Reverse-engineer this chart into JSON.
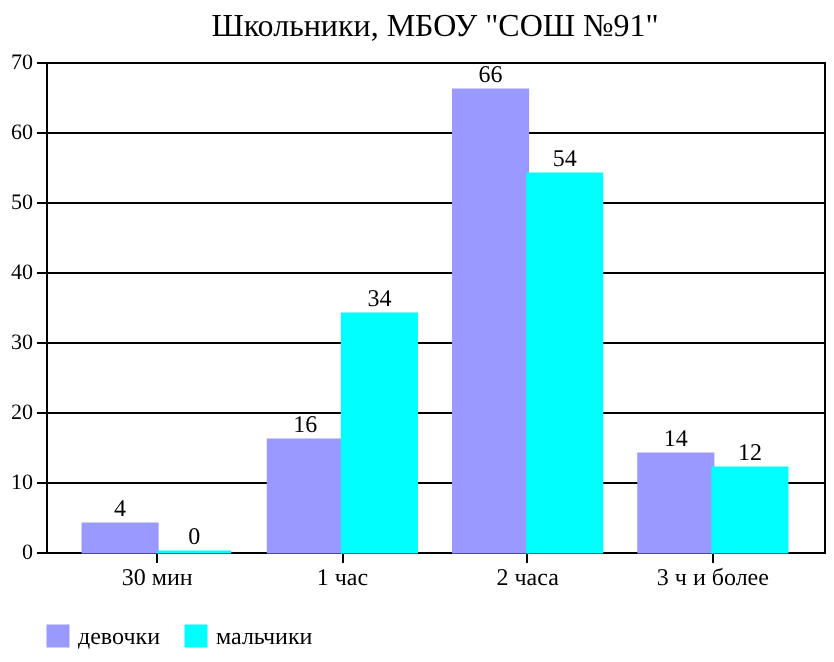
{
  "chart_data": {
    "type": "bar",
    "title": "Школьники, МБОУ \"СОШ №91\"",
    "categories": [
      "30 мин",
      "1 час",
      "2 часа",
      "3 ч и более"
    ],
    "series": [
      {
        "name": "девочки",
        "color": "#9999ff",
        "values": [
          4,
          16,
          66,
          14
        ]
      },
      {
        "name": "мальчики",
        "color": "#00ffff",
        "values": [
          0,
          34,
          54,
          12
        ]
      }
    ],
    "ylim": [
      0,
      70
    ],
    "yticks": [
      0,
      10,
      20,
      30,
      40,
      50,
      60,
      70
    ],
    "grid": "y",
    "legend": "bottom",
    "data_labels": true
  }
}
